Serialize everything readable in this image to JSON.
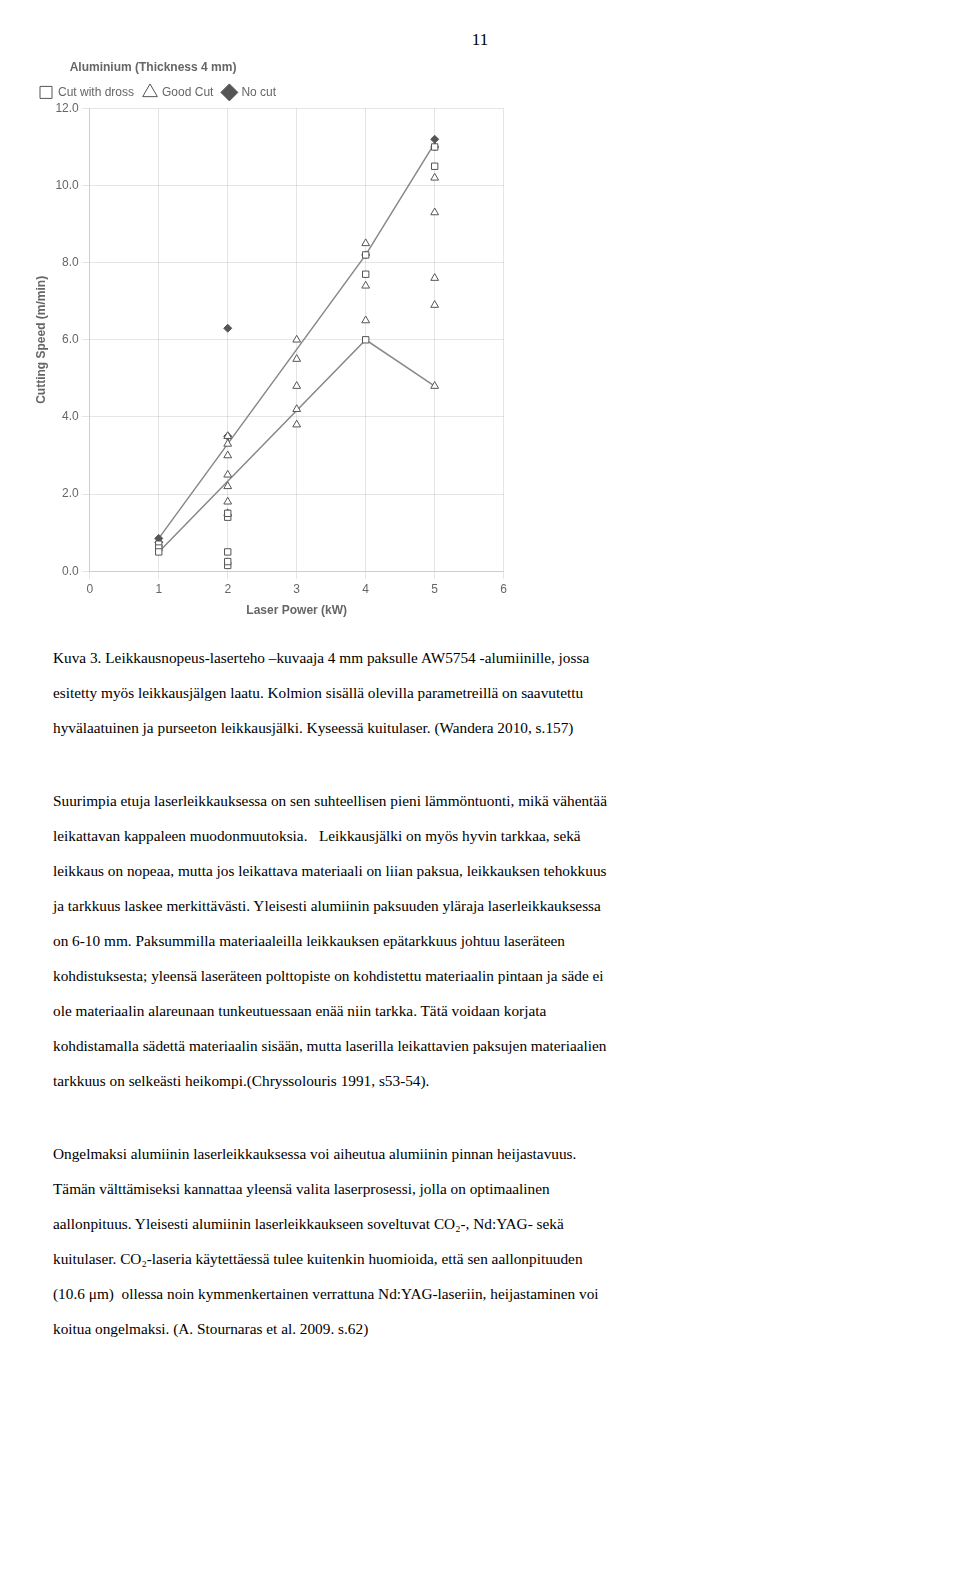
{
  "page_number": "11",
  "chart_data": {
    "type": "scatter",
    "title": "Aluminium (Thickness 4 mm)",
    "x_label": "Laser Power (kW)",
    "y_label": "Cutting Speed (m/min)",
    "xlim": [
      0,
      6
    ],
    "ylim": [
      0.0,
      12.0
    ],
    "xticks": [
      0,
      1,
      2,
      3,
      4,
      5,
      6
    ],
    "yticks": [
      {
        "value": 0,
        "label": "0.0"
      },
      {
        "value": 2,
        "label": "2.0"
      },
      {
        "value": 4,
        "label": "4.0"
      },
      {
        "value": 6,
        "label": "6.0"
      },
      {
        "value": 8,
        "label": "8.0"
      },
      {
        "value": 10,
        "label": "10.0"
      },
      {
        "value": 12,
        "label": "12.0"
      }
    ],
    "grid": true,
    "legend": "upper left",
    "series": [
      {
        "name": "Cut with dross",
        "type": "scatter",
        "marker": "open_square",
        "color": "#555555",
        "x": [
          1,
          1,
          1,
          2,
          2,
          2,
          2,
          2,
          4,
          4,
          4,
          5,
          5
        ],
        "values": [
          0.7,
          0.6,
          0.5,
          0.15,
          0.25,
          0.5,
          1.4,
          1.5,
          7.7,
          8.2,
          6.0,
          10.5,
          11.0
        ]
      },
      {
        "name": "Good Cut",
        "type": "scatter",
        "marker": "open_triangle",
        "color": "#555555",
        "x": [
          2,
          2,
          2,
          2,
          2,
          2,
          2,
          3,
          3,
          3,
          3,
          3,
          4,
          4,
          4,
          5,
          5,
          5,
          5,
          5
        ],
        "values": [
          1.5,
          1.8,
          2.2,
          2.5,
          3.0,
          3.3,
          3.5,
          3.8,
          4.2,
          4.8,
          5.5,
          6.0,
          6.5,
          7.4,
          8.5,
          4.8,
          6.9,
          7.6,
          9.3,
          10.2
        ]
      },
      {
        "name": "No cut",
        "type": "scatter",
        "marker": "diamond",
        "color": "#555555",
        "x": [
          1,
          1,
          2,
          2,
          4,
          5,
          5
        ],
        "values": [
          0.75,
          0.85,
          3.5,
          6.3,
          8.2,
          11.0,
          11.2
        ]
      },
      {
        "type": "line",
        "line_style": "solid",
        "color": "#888888",
        "x": [
          1,
          4,
          5
        ],
        "values": [
          0.85,
          8.2,
          11.1
        ]
      },
      {
        "type": "line",
        "line_style": "solid",
        "color": "#888888",
        "x": [
          1,
          4,
          5
        ],
        "values": [
          0.5,
          6.0,
          4.8
        ]
      }
    ]
  },
  "caption_lines": [
    "Kuva 3. Leikkausnopeus-laserteho –kuvaaja 4 mm paksulle AW5754 -alumiinille, jossa",
    "esitetty myös leikkausjälgen laatu. Kolmion sisällä olevilla parametreillä on saavutettu",
    "hyvälaatuinen ja purseeton leikkausjälki. Kyseessä kuitulaser. (Wandera 2010, s.157)"
  ],
  "paragraphs": [
    [
      "Suurimpia etuja laserleikkauksessa on sen suhteellisen pieni lämmöntuonti, mikä vähentää",
      "leikattavan kappaleen muodonmuutoksia.   Leikkausjälki on myös hyvin tarkkaa, sekä",
      "leikkaus on nopeaa, mutta jos leikattava materiaali on liian paksua, leikkauksen tehokkuus",
      "ja tarkkuus laskee merkittävästi. Yleisesti alumiinin paksuuden yläraja laserleikkauksessa",
      "on 6-10 mm. Paksummilla materiaaleilla leikkauksen epätarkkuus johtuu laseräteen",
      "kohdistuksesta; yleensä laseräteen polttopiste on kohdistettu materiaalin pintaan ja säde ei",
      "ole materiaalin alareunaan tunkeutuessaan enää niin tarkka. Tätä voidaan korjata",
      "kohdistamalla sädettä materiaalin sisään, mutta laserilla leikattavien paksujen materiaalien",
      "tarkkuus on selkeästi heikompi.(Chryssolouris 1991, s53-54)."
    ],
    [
      "Ongelmaksi alumiinin laserleikkauksessa voi aiheutua alumiinin pinnan heijastavuus.",
      "Tämän välttämiseksi kannattaa yleensä valita laserprosessi, jolla on optimaalinen",
      "aallonpituus. Yleisesti alumiinin laserleikkaukseen soveltuvat CO₂-, Nd:YAG- sekä",
      "kuitulaser. CO₂-laseria käytettäessä tulee kuitenkin huomioida, että sen aallonpituuden",
      "(10.6 μm)  ollessa noin kymmenkertainen verrattuna Nd:YAG-laseriin, heijastaminen voi",
      "koitua ongelmaksi. (A. Stournaras et al. 2009. s.62)"
    ]
  ]
}
